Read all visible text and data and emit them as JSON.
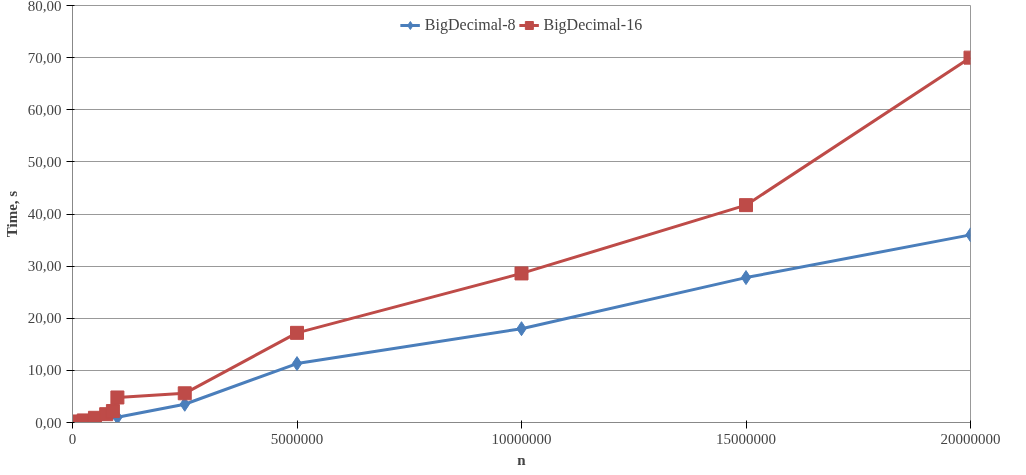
{
  "chart_data": {
    "type": "line",
    "xlabel": "n",
    "ylabel": "Time, s",
    "x": [
      100000,
      250000,
      500000,
      750000,
      900000,
      1000000,
      2500000,
      5000000,
      10000000,
      15000000,
      20000000
    ],
    "series": [
      {
        "name": "BigDecimal-8",
        "color": "#4a7ebb",
        "marker": "diamond",
        "x": [
          500000,
          1000000,
          2500000,
          5000000,
          10000000,
          15000000,
          20000000
        ],
        "values": [
          0.4,
          1.0,
          3.5,
          11.3,
          18.0,
          27.8,
          36.0
        ]
      },
      {
        "name": "BigDecimal-16",
        "color": "#be4b48",
        "marker": "square",
        "values": [
          0.2,
          0.4,
          0.9,
          1.6,
          2.2,
          4.8,
          5.6,
          17.2,
          28.6,
          41.7,
          70.0
        ]
      }
    ],
    "xlim": [
      0,
      20000000
    ],
    "xticks": [
      0,
      5000000,
      10000000,
      15000000,
      20000000
    ],
    "ylim": [
      0,
      80
    ],
    "yticks": [
      {
        "value": 0,
        "label": "0,00"
      },
      {
        "value": 10,
        "label": "10,00"
      },
      {
        "value": 20,
        "label": "20,00"
      },
      {
        "value": 30,
        "label": "30,00"
      },
      {
        "value": 40,
        "label": "40,00"
      },
      {
        "value": 50,
        "label": "50,00"
      },
      {
        "value": 60,
        "label": "60,00"
      },
      {
        "value": 70,
        "label": "70,00"
      },
      {
        "value": 80,
        "label": "80,00"
      }
    ],
    "grid": "y",
    "legend": "top"
  }
}
